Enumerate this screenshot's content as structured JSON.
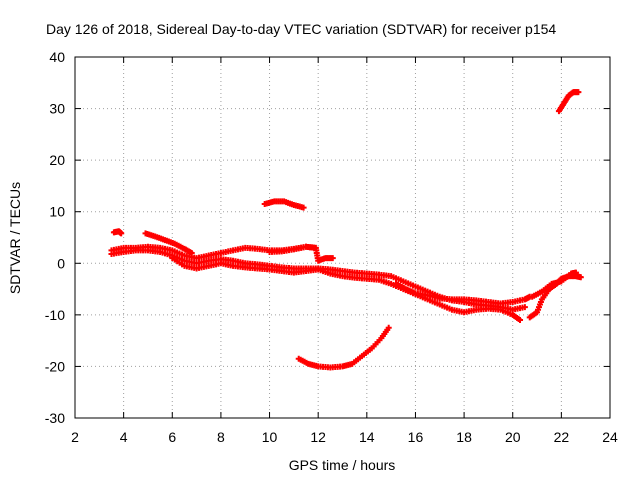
{
  "chart_data": {
    "type": "scatter",
    "title": "Day 126 of 2018, Sidereal Day-to-day VTEC variation (SDTVAR) for receiver p154",
    "xlabel": "GPS time / hours",
    "ylabel": "SDTVAR / TECUs",
    "xlim": [
      2,
      24
    ],
    "ylim": [
      -30,
      40
    ],
    "xticks": [
      2,
      4,
      6,
      8,
      10,
      12,
      14,
      16,
      18,
      20,
      22,
      24
    ],
    "yticks": [
      -30,
      -20,
      -10,
      0,
      10,
      20,
      30,
      40
    ],
    "grid": true,
    "marker": "plus",
    "color": "#ff0000",
    "series": [
      {
        "name": "main-band-upper",
        "points": [
          [
            3.5,
            2.5
          ],
          [
            4.0,
            3.0
          ],
          [
            4.5,
            3.0
          ],
          [
            5.0,
            3.2
          ],
          [
            5.5,
            3.0
          ],
          [
            6.0,
            2.5
          ],
          [
            6.5,
            1.5
          ],
          [
            7.0,
            1.0
          ],
          [
            7.5,
            1.5
          ],
          [
            8.0,
            2.0
          ],
          [
            8.5,
            2.5
          ],
          [
            9.0,
            3.0
          ],
          [
            9.5,
            2.8
          ],
          [
            10.0,
            2.5
          ],
          [
            10.5,
            2.5
          ],
          [
            11.0,
            2.8
          ],
          [
            11.5,
            3.2
          ],
          [
            11.9,
            3.0
          ]
        ]
      },
      {
        "name": "main-band-middle",
        "points": [
          [
            3.5,
            1.8
          ],
          [
            4.0,
            2.2
          ],
          [
            4.5,
            2.5
          ],
          [
            5.0,
            2.5
          ],
          [
            5.5,
            2.2
          ],
          [
            6.0,
            1.5
          ],
          [
            6.5,
            0.5
          ],
          [
            7.0,
            0.0
          ],
          [
            7.5,
            0.5
          ],
          [
            8.0,
            0.8
          ],
          [
            8.5,
            0.5
          ],
          [
            9.0,
            0.0
          ],
          [
            9.5,
            -0.2
          ],
          [
            10.0,
            -0.5
          ],
          [
            10.5,
            -0.8
          ],
          [
            11.0,
            -1.0
          ],
          [
            11.5,
            -1.0
          ],
          [
            12.0,
            -1.0
          ],
          [
            12.5,
            -1.2
          ],
          [
            13.0,
            -1.5
          ],
          [
            13.5,
            -1.8
          ],
          [
            14.0,
            -2.0
          ],
          [
            14.5,
            -2.2
          ],
          [
            15.0,
            -2.5
          ],
          [
            15.5,
            -3.5
          ],
          [
            16.0,
            -4.5
          ],
          [
            16.5,
            -5.5
          ],
          [
            17.0,
            -6.5
          ],
          [
            17.5,
            -7.2
          ],
          [
            18.0,
            -7.5
          ],
          [
            18.5,
            -8.0
          ],
          [
            19.0,
            -8.2
          ],
          [
            19.5,
            -8.5
          ],
          [
            20.0,
            -9.0
          ],
          [
            20.5,
            -8.5
          ]
        ]
      },
      {
        "name": "main-band-lower",
        "points": [
          [
            6.0,
            1.0
          ],
          [
            6.5,
            -0.5
          ],
          [
            7.0,
            -1.0
          ],
          [
            7.5,
            -0.5
          ],
          [
            8.0,
            0.0
          ],
          [
            8.5,
            -0.5
          ],
          [
            9.0,
            -0.8
          ],
          [
            9.5,
            -1.0
          ],
          [
            10.0,
            -1.2
          ],
          [
            10.5,
            -1.5
          ],
          [
            11.0,
            -1.8
          ],
          [
            11.5,
            -1.5
          ],
          [
            12.0,
            -1.2
          ],
          [
            12.5,
            -2.0
          ],
          [
            13.0,
            -2.5
          ],
          [
            13.5,
            -2.8
          ],
          [
            14.0,
            -3.0
          ],
          [
            14.5,
            -3.2
          ],
          [
            15.0,
            -4.0
          ],
          [
            15.5,
            -5.0
          ],
          [
            16.0,
            -6.0
          ],
          [
            16.5,
            -7.0
          ],
          [
            17.0,
            -8.0
          ],
          [
            17.5,
            -9.0
          ],
          [
            18.0,
            -9.5
          ],
          [
            18.5,
            -9.0
          ],
          [
            19.0,
            -8.8
          ],
          [
            19.5,
            -9.0
          ],
          [
            20.0,
            -10.0
          ],
          [
            20.3,
            -11.0
          ]
        ]
      },
      {
        "name": "branch-rising-bump",
        "points": [
          [
            10.0,
            2.2
          ],
          [
            10.5,
            2.3
          ],
          [
            11.0,
            2.7
          ],
          [
            11.5,
            3.2
          ],
          [
            11.9,
            3.0
          ],
          [
            12.0,
            0.5
          ],
          [
            12.3,
            1.0
          ],
          [
            12.6,
            1.0
          ]
        ]
      },
      {
        "name": "branch-upper-tail",
        "points": [
          [
            15.2,
            -4.0
          ],
          [
            15.6,
            -5.0
          ],
          [
            16.0,
            -5.8
          ],
          [
            16.5,
            -6.2
          ],
          [
            17.0,
            -6.8
          ],
          [
            17.5,
            -7.0
          ],
          [
            18.0,
            -7.0
          ],
          [
            18.5,
            -7.2
          ],
          [
            19.0,
            -7.5
          ],
          [
            19.5,
            -7.8
          ],
          [
            20.0,
            -7.5
          ],
          [
            20.5,
            -7.0
          ],
          [
            20.7,
            -6.5
          ]
        ]
      },
      {
        "name": "early-upturn",
        "points": [
          [
            3.6,
            6.0
          ],
          [
            3.8,
            6.2
          ],
          [
            3.9,
            5.8
          ]
        ]
      },
      {
        "name": "five-hour-branch",
        "points": [
          [
            4.9,
            5.8
          ],
          [
            5.3,
            5.2
          ],
          [
            5.7,
            4.5
          ],
          [
            6.1,
            3.8
          ],
          [
            6.5,
            2.8
          ],
          [
            6.8,
            2.0
          ]
        ]
      },
      {
        "name": "ten-hour-arc",
        "points": [
          [
            9.8,
            11.5
          ],
          [
            10.2,
            12.0
          ],
          [
            10.6,
            12.0
          ],
          [
            11.0,
            11.3
          ],
          [
            11.4,
            10.8
          ]
        ]
      },
      {
        "name": "night-arc",
        "points": [
          [
            11.2,
            -18.5
          ],
          [
            11.6,
            -19.5
          ],
          [
            12.0,
            -20.0
          ],
          [
            12.5,
            -20.2
          ],
          [
            13.0,
            -20.0
          ],
          [
            13.4,
            -19.5
          ],
          [
            13.8,
            -18.0
          ],
          [
            14.2,
            -16.5
          ],
          [
            14.6,
            -14.5
          ],
          [
            14.9,
            -12.5
          ]
        ]
      },
      {
        "name": "late-rise",
        "points": [
          [
            20.7,
            -10.5
          ],
          [
            21.0,
            -9.5
          ],
          [
            21.2,
            -7.0
          ],
          [
            21.5,
            -5.0
          ],
          [
            21.8,
            -4.0
          ],
          [
            22.0,
            -3.0
          ],
          [
            22.3,
            -2.5
          ],
          [
            22.6,
            -2.5
          ],
          [
            22.8,
            -2.7
          ]
        ]
      },
      {
        "name": "late-drop",
        "points": [
          [
            20.8,
            -6.5
          ],
          [
            21.2,
            -5.5
          ],
          [
            21.6,
            -4.0
          ],
          [
            22.0,
            -3.5
          ],
          [
            22.4,
            -2.0
          ],
          [
            22.6,
            -1.8
          ]
        ]
      },
      {
        "name": "top-right-arc",
        "points": [
          [
            21.9,
            29.5
          ],
          [
            22.1,
            31.0
          ],
          [
            22.3,
            32.5
          ],
          [
            22.5,
            33.2
          ],
          [
            22.7,
            33.2
          ]
        ]
      }
    ]
  }
}
